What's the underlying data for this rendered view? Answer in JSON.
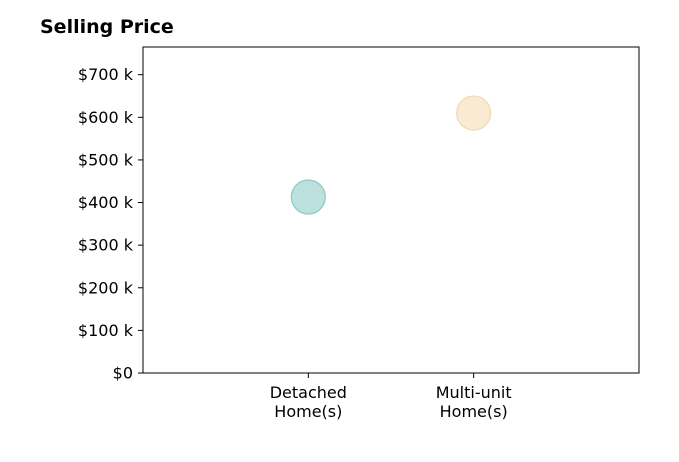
{
  "chart_data": {
    "type": "scatter",
    "title": "Selling Price",
    "xlabel": "",
    "ylabel": "",
    "categories": [
      [
        "Detached",
        "Home(s)"
      ],
      [
        "Multi-unit",
        "Home(s)"
      ]
    ],
    "values": [
      413000,
      610000
    ],
    "colors": [
      "#9fd3cf",
      "#f6e3c0"
    ],
    "edge_colors": [
      "#8fc9c5",
      "#efd9b0"
    ],
    "ylim": [
      0,
      765000
    ],
    "yticks": [
      0,
      100000,
      200000,
      300000,
      400000,
      500000,
      600000,
      700000
    ],
    "ytick_labels": [
      "$0",
      "$100 k",
      "$200 k",
      "$300 k",
      "$400 k",
      "$500 k",
      "$600 k",
      "$700 k"
    ],
    "xlim": [
      -1,
      2
    ],
    "grid": false,
    "legend": "none"
  }
}
